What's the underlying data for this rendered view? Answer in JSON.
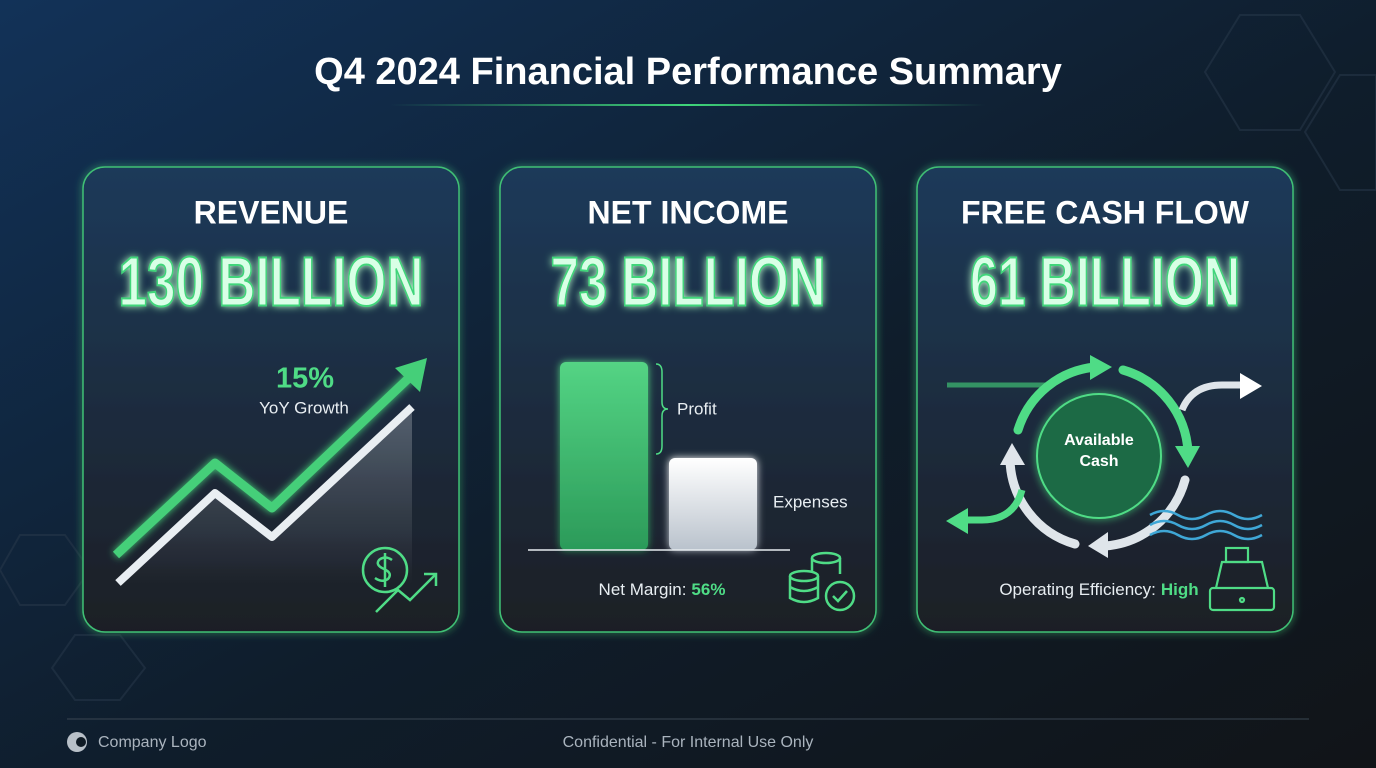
{
  "title": "Q4 2024 Financial Performance Summary",
  "cards": [
    {
      "heading": "REVENUE",
      "value": "130 BILLION",
      "growth": "15%",
      "growth_label": "YoY Growth"
    },
    {
      "heading": "NET INCOME",
      "value": "73 BILLION",
      "bar_labels": [
        "Profit",
        "Expenses"
      ],
      "footer_label": "Net Margin:",
      "footer_value": "56%"
    },
    {
      "heading": "FREE CASH FLOW",
      "value": "61 BILLION",
      "center_label": "Available Cash",
      "footer_label": "Operating Efficiency:",
      "footer_value": "High"
    }
  ],
  "footer": {
    "logo": "Company Logo",
    "note": "Confidential - For Internal Use Only"
  }
}
